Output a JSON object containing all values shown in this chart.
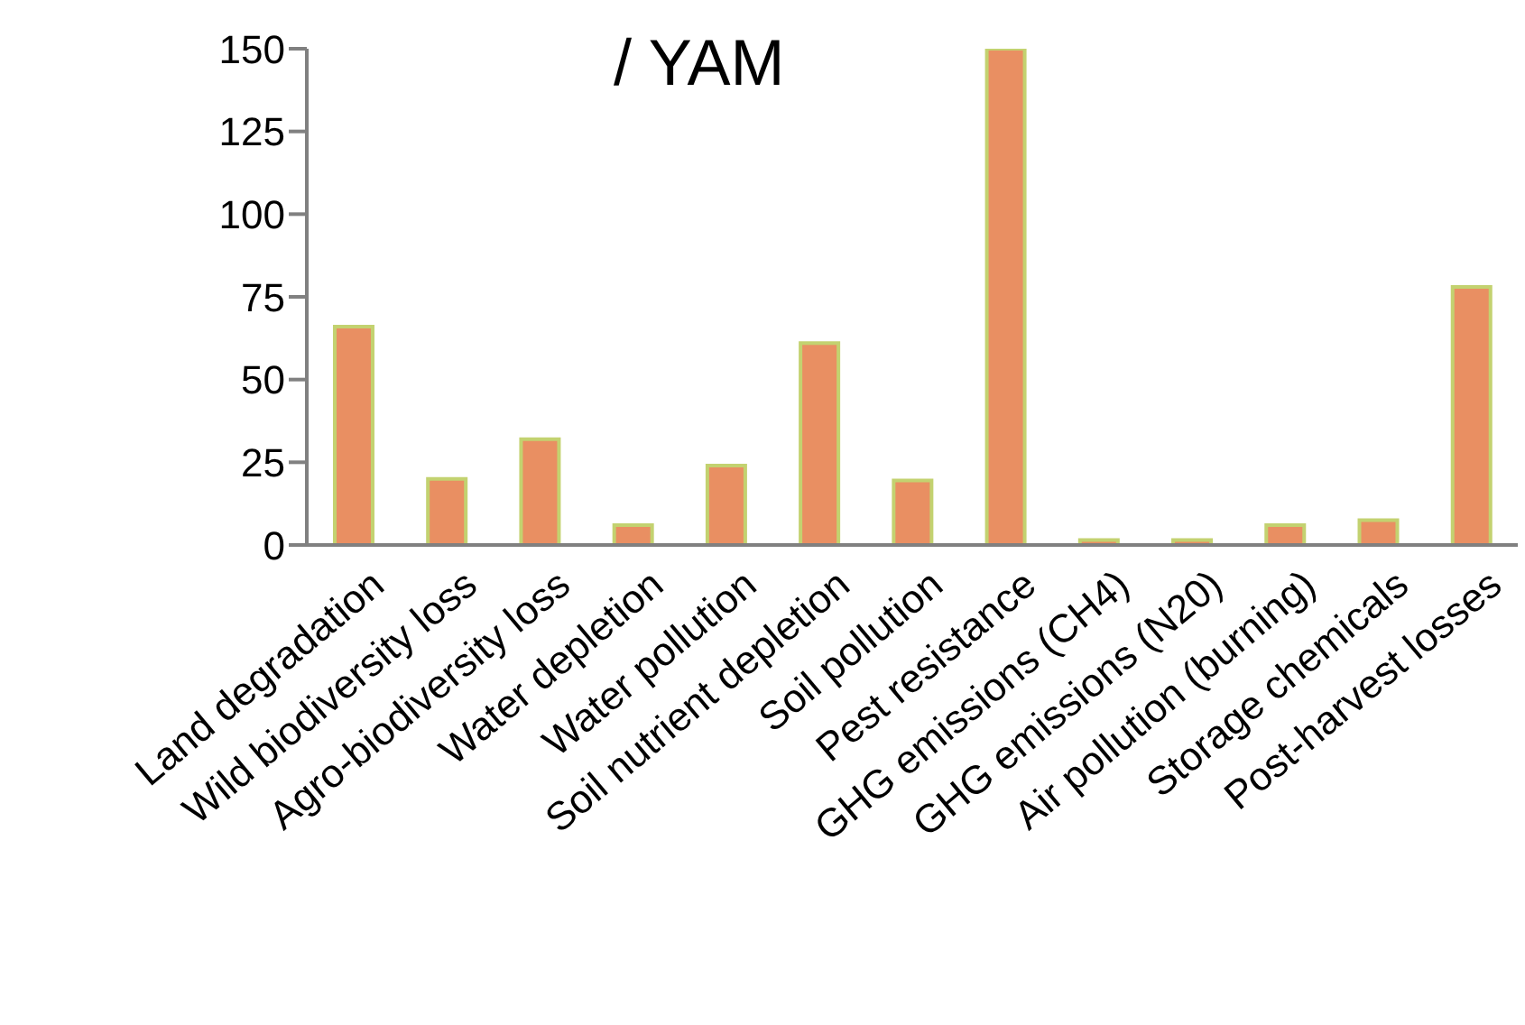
{
  "chart_data": {
    "type": "bar",
    "title": "/ YAM",
    "categories": [
      "Land degradation",
      "Wild biodiversity loss",
      "Agro-biodiversity loss",
      "Water depletion",
      "Water pollution",
      "Soil nutrient depletion",
      "Soil pollution",
      "Pest resistance",
      "GHG emissions (CH4)",
      "GHG emissions (N20)",
      "Air pollution (burning)",
      "Storage chemicals",
      "Post-harvest losses"
    ],
    "values": [
      66,
      20,
      32,
      6,
      24,
      61,
      19.5,
      150,
      1.5,
      1.5,
      6,
      7.5,
      78
    ],
    "color": "#e98f62",
    "ylim": [
      0,
      150
    ],
    "yticks": [
      0,
      25,
      50,
      75,
      100,
      125,
      150
    ],
    "grid": false
  }
}
